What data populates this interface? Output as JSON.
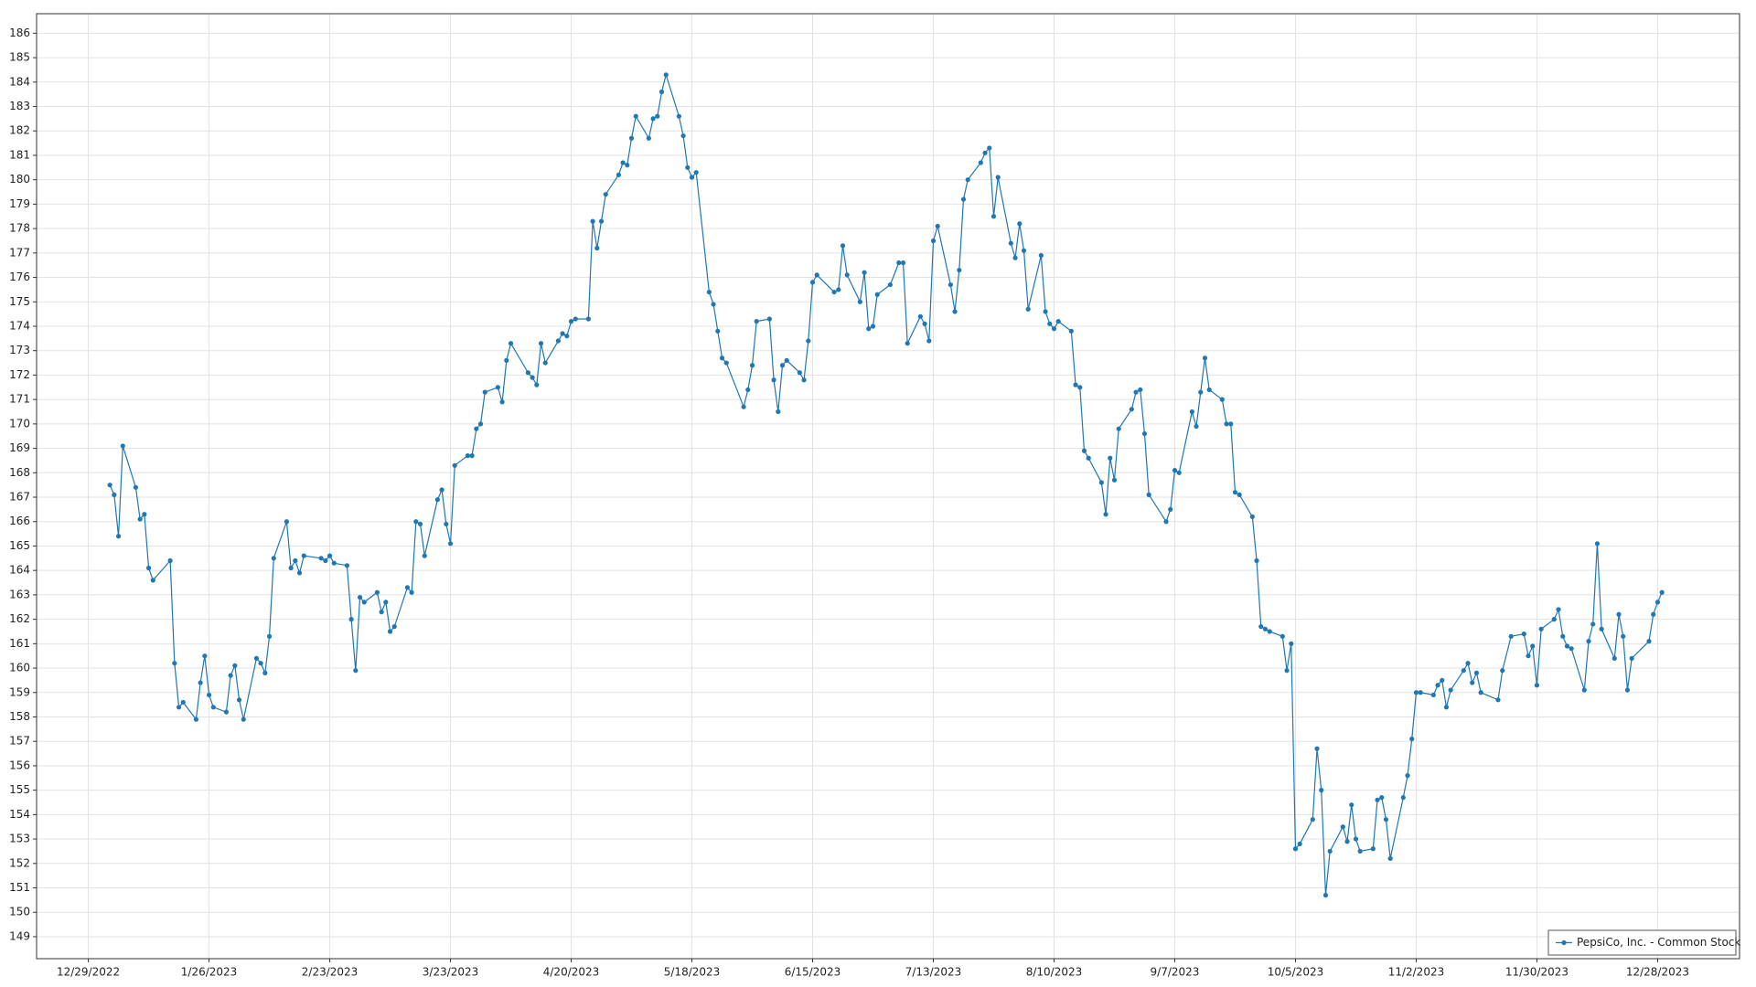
{
  "chart_data": {
    "type": "line",
    "xlim": [
      "12/17/2022",
      "1/16/2024"
    ],
    "xticks": [
      "12/29/2022",
      "1/26/2023",
      "2/23/2023",
      "3/23/2023",
      "4/20/2023",
      "5/18/2023",
      "6/15/2023",
      "7/13/2023",
      "8/10/2023",
      "9/7/2023",
      "10/5/2023",
      "11/2/2023",
      "11/30/2023",
      "12/28/2023"
    ],
    "ylim": [
      148.1,
      186.8
    ],
    "yticks": [
      149,
      150,
      151,
      152,
      153,
      154,
      155,
      156,
      157,
      158,
      159,
      160,
      161,
      162,
      163,
      164,
      165,
      166,
      167,
      168,
      169,
      170,
      171,
      172,
      173,
      174,
      175,
      176,
      177,
      178,
      179,
      180,
      181,
      182,
      183,
      184,
      185,
      186
    ],
    "grid": true,
    "legend": "lower right",
    "x": [
      "1/3/2023",
      "1/4/2023",
      "1/5/2023",
      "1/6/2023",
      "1/9/2023",
      "1/10/2023",
      "1/11/2023",
      "1/12/2023",
      "1/13/2023",
      "1/17/2023",
      "1/18/2023",
      "1/19/2023",
      "1/20/2023",
      "1/23/2023",
      "1/24/2023",
      "1/25/2023",
      "1/26/2023",
      "1/27/2023",
      "1/30/2023",
      "1/31/2023",
      "2/1/2023",
      "2/2/2023",
      "2/3/2023",
      "2/6/2023",
      "2/7/2023",
      "2/8/2023",
      "2/9/2023",
      "2/10/2023",
      "2/13/2023",
      "2/14/2023",
      "2/15/2023",
      "2/16/2023",
      "2/17/2023",
      "2/21/2023",
      "2/22/2023",
      "2/23/2023",
      "2/24/2023",
      "2/27/2023",
      "2/28/2023",
      "3/1/2023",
      "3/2/2023",
      "3/3/2023",
      "3/6/2023",
      "3/7/2023",
      "3/8/2023",
      "3/9/2023",
      "3/10/2023",
      "3/13/2023",
      "3/14/2023",
      "3/15/2023",
      "3/16/2023",
      "3/17/2023",
      "3/20/2023",
      "3/21/2023",
      "3/22/2023",
      "3/23/2023",
      "3/24/2023",
      "3/27/2023",
      "3/28/2023",
      "3/29/2023",
      "3/30/2023",
      "3/31/2023",
      "4/3/2023",
      "4/4/2023",
      "4/5/2023",
      "4/6/2023",
      "4/10/2023",
      "4/11/2023",
      "4/12/2023",
      "4/13/2023",
      "4/14/2023",
      "4/17/2023",
      "4/18/2023",
      "4/19/2023",
      "4/20/2023",
      "4/21/2023",
      "4/24/2023",
      "4/25/2023",
      "4/26/2023",
      "4/27/2023",
      "4/28/2023",
      "5/1/2023",
      "5/2/2023",
      "5/3/2023",
      "5/4/2023",
      "5/5/2023",
      "5/8/2023",
      "5/9/2023",
      "5/10/2023",
      "5/11/2023",
      "5/12/2023",
      "5/15/2023",
      "5/16/2023",
      "5/17/2023",
      "5/18/2023",
      "5/19/2023",
      "5/22/2023",
      "5/23/2023",
      "5/24/2023",
      "5/25/2023",
      "5/26/2023",
      "5/30/2023",
      "5/31/2023",
      "6/1/2023",
      "6/2/2023",
      "6/5/2023",
      "6/6/2023",
      "6/7/2023",
      "6/8/2023",
      "6/9/2023",
      "6/12/2023",
      "6/13/2023",
      "6/14/2023",
      "6/15/2023",
      "6/16/2023",
      "6/20/2023",
      "6/21/2023",
      "6/22/2023",
      "6/23/2023",
      "6/26/2023",
      "6/27/2023",
      "6/28/2023",
      "6/29/2023",
      "6/30/2023",
      "7/3/2023",
      "7/5/2023",
      "7/6/2023",
      "7/7/2023",
      "7/10/2023",
      "7/11/2023",
      "7/12/2023",
      "7/13/2023",
      "7/14/2023",
      "7/17/2023",
      "7/18/2023",
      "7/19/2023",
      "7/20/2023",
      "7/21/2023",
      "7/24/2023",
      "7/25/2023",
      "7/26/2023",
      "7/27/2023",
      "7/28/2023",
      "7/31/2023",
      "8/1/2023",
      "8/2/2023",
      "8/3/2023",
      "8/4/2023",
      "8/7/2023",
      "8/8/2023",
      "8/9/2023",
      "8/10/2023",
      "8/11/2023",
      "8/14/2023",
      "8/15/2023",
      "8/16/2023",
      "8/17/2023",
      "8/18/2023",
      "8/21/2023",
      "8/22/2023",
      "8/23/2023",
      "8/24/2023",
      "8/25/2023",
      "8/28/2023",
      "8/29/2023",
      "8/30/2023",
      "8/31/2023",
      "9/1/2023",
      "9/5/2023",
      "9/6/2023",
      "9/7/2023",
      "9/8/2023",
      "9/11/2023",
      "9/12/2023",
      "9/13/2023",
      "9/14/2023",
      "9/15/2023",
      "9/18/2023",
      "9/19/2023",
      "9/20/2023",
      "9/21/2023",
      "9/22/2023",
      "9/25/2023",
      "9/26/2023",
      "9/27/2023",
      "9/28/2023",
      "9/29/2023",
      "10/2/2023",
      "10/3/2023",
      "10/4/2023",
      "10/5/2023",
      "10/6/2023",
      "10/9/2023",
      "10/10/2023",
      "10/11/2023",
      "10/12/2023",
      "10/13/2023",
      "10/16/2023",
      "10/17/2023",
      "10/18/2023",
      "10/19/2023",
      "10/20/2023",
      "10/23/2023",
      "10/24/2023",
      "10/25/2023",
      "10/26/2023",
      "10/27/2023",
      "10/30/2023",
      "10/31/2023",
      "11/1/2023",
      "11/2/2023",
      "11/3/2023",
      "11/6/2023",
      "11/7/2023",
      "11/8/2023",
      "11/9/2023",
      "11/10/2023",
      "11/13/2023",
      "11/14/2023",
      "11/15/2023",
      "11/16/2023",
      "11/17/2023",
      "11/21/2023",
      "11/22/2023",
      "11/24/2023",
      "11/27/2023",
      "11/28/2023",
      "11/29/2023",
      "11/30/2023",
      "12/1/2023",
      "12/4/2023",
      "12/5/2023",
      "12/6/2023",
      "12/7/2023",
      "12/8/2023",
      "12/11/2023",
      "12/12/2023",
      "12/13/2023",
      "12/14/2023",
      "12/15/2023",
      "12/18/2023",
      "12/19/2023",
      "12/20/2023",
      "12/21/2023",
      "12/22/2023",
      "12/26/2023",
      "12/27/2023",
      "12/28/2023",
      "12/29/2023"
    ],
    "series": [
      {
        "name": "PepsiCo, Inc. - Common Stock",
        "color": "#1f77b4",
        "values": [
          167.5,
          167.1,
          165.4,
          169.1,
          167.4,
          166.1,
          166.3,
          164.1,
          163.6,
          164.4,
          160.2,
          158.4,
          158.6,
          157.9,
          159.4,
          160.5,
          158.9,
          158.4,
          158.2,
          159.7,
          160.1,
          158.7,
          157.9,
          160.4,
          160.2,
          159.8,
          161.3,
          164.5,
          166.0,
          164.1,
          164.4,
          163.9,
          164.6,
          164.5,
          164.4,
          164.6,
          164.3,
          164.2,
          162.0,
          159.9,
          162.9,
          162.7,
          163.1,
          162.3,
          162.7,
          161.5,
          161.7,
          163.3,
          163.1,
          166.0,
          165.9,
          164.6,
          166.9,
          167.3,
          165.9,
          165.1,
          168.3,
          168.7,
          168.7,
          169.8,
          170.0,
          171.3,
          171.5,
          170.9,
          172.6,
          173.3,
          172.1,
          171.9,
          171.6,
          173.3,
          172.5,
          173.4,
          173.7,
          173.6,
          174.2,
          174.3,
          174.3,
          178.3,
          177.2,
          178.3,
          179.4,
          180.2,
          180.7,
          180.6,
          181.7,
          182.6,
          181.7,
          182.5,
          182.6,
          183.6,
          184.3,
          182.6,
          181.8,
          180.5,
          180.1,
          180.3,
          175.4,
          174.9,
          173.8,
          172.7,
          172.5,
          170.7,
          171.4,
          172.4,
          174.2,
          174.3,
          171.8,
          170.5,
          172.4,
          172.6,
          172.1,
          171.8,
          173.4,
          175.8,
          176.1,
          175.4,
          175.5,
          177.3,
          176.1,
          175.0,
          176.2,
          173.9,
          174.0,
          175.3,
          175.7,
          176.6,
          176.6,
          173.3,
          174.4,
          174.1,
          173.4,
          177.5,
          178.1,
          175.7,
          174.6,
          176.3,
          179.2,
          180.0,
          180.7,
          181.1,
          181.3,
          178.5,
          180.1,
          177.4,
          176.8,
          178.2,
          177.1,
          174.7,
          176.9,
          174.6,
          174.1,
          173.9,
          174.2,
          173.8,
          171.6,
          171.5,
          168.9,
          168.6,
          167.6,
          166.3,
          168.6,
          167.7,
          169.8,
          170.6,
          171.3,
          171.4,
          169.6,
          167.1,
          166.0,
          166.5,
          168.1,
          168.0,
          170.5,
          169.9,
          171.3,
          172.7,
          171.4,
          171.0,
          170.0,
          170.0,
          167.2,
          167.1,
          166.2,
          164.4,
          161.7,
          161.6,
          161.5,
          161.3,
          159.9,
          161.0,
          152.6,
          152.8,
          153.8,
          156.7,
          155.0,
          150.7,
          152.5,
          153.5,
          152.9,
          154.4,
          153.0,
          152.5,
          152.6,
          154.6,
          154.7,
          153.8,
          152.2,
          154.7,
          155.6,
          157.1,
          159.0,
          159.0,
          158.9,
          159.3,
          159.5,
          158.4,
          159.1,
          159.9,
          160.2,
          159.4,
          159.8,
          159.0,
          158.7,
          159.9,
          161.3,
          161.4,
          160.5,
          160.9,
          159.3,
          161.6,
          162.0,
          162.4,
          161.3,
          160.9,
          160.8,
          159.1,
          161.1,
          161.8,
          165.1,
          161.6,
          160.4,
          162.2,
          161.3,
          159.1,
          160.4,
          161.1,
          162.2,
          162.7,
          163.1
        ]
      }
    ]
  }
}
